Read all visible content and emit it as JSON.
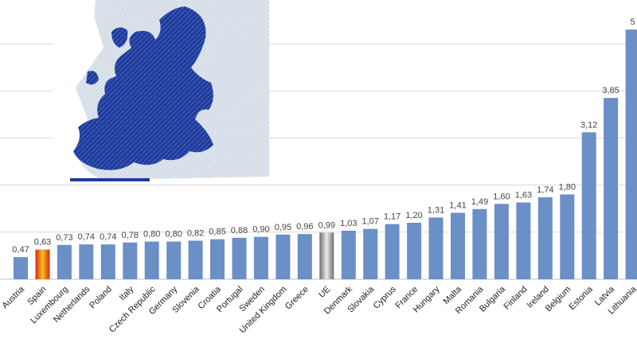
{
  "chart_data": {
    "type": "bar",
    "categories": [
      "Austria",
      "Spain",
      "Luxembourg",
      "Netherlands",
      "Poland",
      "Italy",
      "Czech Republic",
      "Germany",
      "Slovenia",
      "Croatia",
      "Portugal",
      "Sweden",
      "United Kingdom",
      "Greece",
      "UE",
      "Denmark",
      "Slovakia",
      "Cyprus",
      "France",
      "Hungary",
      "Malta",
      "Romania",
      "Bulgaria",
      "Finland",
      "Ireland",
      "Belgium",
      "Estonia",
      "Latvia",
      "Lithuania"
    ],
    "values": [
      0.47,
      0.63,
      0.73,
      0.74,
      0.74,
      0.78,
      0.8,
      0.8,
      0.82,
      0.85,
      0.88,
      0.9,
      0.95,
      0.96,
      0.99,
      1.03,
      1.07,
      1.17,
      1.2,
      1.31,
      1.41,
      1.49,
      1.6,
      1.63,
      1.74,
      1.8,
      3.12,
      3.85,
      5.3
    ],
    "value_labels": [
      "0,47",
      "0,63",
      "0,73",
      "0,74",
      "0,74",
      "0,78",
      "0,80",
      "0,80",
      "0,82",
      "0,85",
      "0,88",
      "0,90",
      "0,95",
      "0,96",
      "0,99",
      "1,03",
      "1,07",
      "1,17",
      "1,20",
      "1,31",
      "1,41",
      "1,49",
      "1,60",
      "1,63",
      "1,74",
      "1,80",
      "3,12",
      "3,85",
      "5"
    ],
    "ylim": [
      0,
      5.6
    ],
    "grid": true,
    "legend": "none",
    "colors": {
      "bar": "#6b8fc7",
      "highlight_spain": [
        "#d42a12",
        "#f7c020"
      ],
      "highlight_ue": [
        "#6e6e6e",
        "#e8e8e8"
      ]
    },
    "decorations": [
      "eu-map-image"
    ]
  }
}
